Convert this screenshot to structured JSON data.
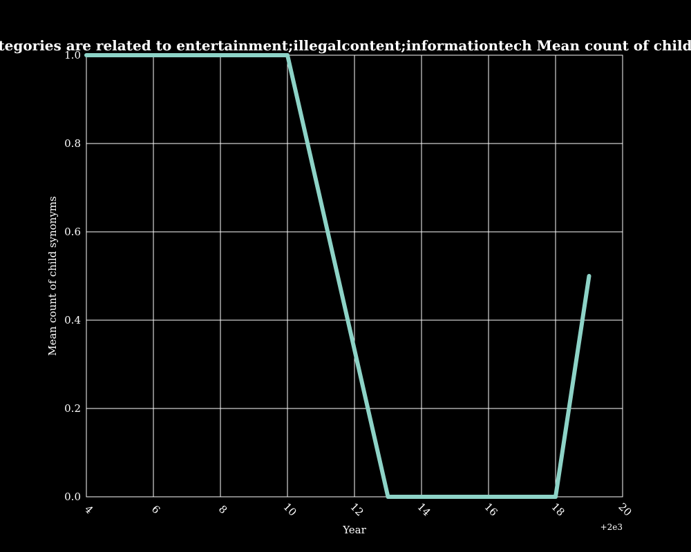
{
  "chart_data": {
    "type": "line",
    "title": "Percentage of sites that categories are related to entertainment;illegalcontent;informationtech Mean count of child synonyms in privacy policies",
    "xlabel": "Year",
    "ylabel": "Mean count of child synonyms",
    "x_offset_label": "+2e3",
    "xlim": [
      4,
      20
    ],
    "ylim": [
      0.0,
      1.0
    ],
    "x_ticks": [
      "4",
      "6",
      "8",
      "10",
      "12",
      "14",
      "16",
      "18",
      "20"
    ],
    "y_ticks": [
      "0.0",
      "0.2",
      "0.4",
      "0.6",
      "0.8",
      "1.0"
    ],
    "grid": true,
    "series": [
      {
        "x": [
          4,
          5,
          6,
          7,
          8,
          9,
          10,
          11,
          12,
          13,
          14,
          15,
          16,
          17,
          18,
          19
        ],
        "values": [
          1.0,
          1.0,
          1.0,
          1.0,
          1.0,
          1.0,
          1.0,
          0.667,
          0.333,
          0.0,
          0.0,
          0.0,
          0.0,
          0.0,
          0.0,
          0.5
        ],
        "color": "#8dd3c7"
      }
    ],
    "colors": {
      "background": "#000000",
      "axes": "#ffffff",
      "line": "#8dd3c7"
    }
  }
}
